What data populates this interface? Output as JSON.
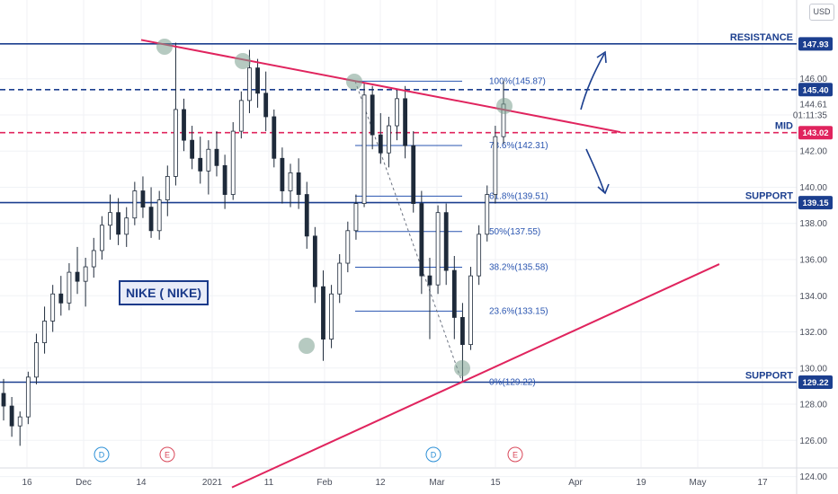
{
  "currency_label": "USD",
  "title_box": "NIKE ( NIKE)",
  "chart_data": {
    "type": "candlestick",
    "x_ticks": [
      "16",
      "Dec",
      "14",
      "2021",
      "11",
      "Feb",
      "12",
      "Mar",
      "15",
      "Apr",
      "19",
      "May",
      "17"
    ],
    "y_ticks": [
      "124.00",
      "126.00",
      "128.00",
      "130.00",
      "132.00",
      "134.00",
      "136.00",
      "138.00",
      "140.00",
      "142.00",
      "146.00",
      "144.61",
      "01:11:35"
    ],
    "price_tags": [
      {
        "value": "147.93",
        "color": "#1c3f8f"
      },
      {
        "value": "145.40",
        "color": "#1c3f8f"
      },
      {
        "value": "143.02",
        "color": "#e0245e"
      },
      {
        "value": "139.15",
        "color": "#1c3f8f"
      },
      {
        "value": "129.22",
        "color": "#1c3f8f"
      }
    ],
    "levels": [
      {
        "label": "RESISTANCE",
        "price": 147.93,
        "style": "solid",
        "color": "#1c3f8f"
      },
      {
        "label": "",
        "price": 145.4,
        "style": "dashed",
        "color": "#1c3f8f"
      },
      {
        "label": "MID",
        "price": 143.02,
        "style": "dashed",
        "color": "#e0245e"
      },
      {
        "label": "SUPPORT",
        "price": 139.15,
        "style": "solid",
        "color": "#1c3f8f"
      },
      {
        "label": "SUPPORT",
        "price": 129.22,
        "style": "solid",
        "color": "#1c3f8f"
      }
    ],
    "fib_levels": [
      {
        "label": "100%(145.87)",
        "price": 145.87
      },
      {
        "label": "78.6%(142.31)",
        "price": 142.31
      },
      {
        "label": "61.8%(139.51)",
        "price": 139.51
      },
      {
        "label": "50%(137.55)",
        "price": 137.55
      },
      {
        "label": "38.2%(135.58)",
        "price": 135.58
      },
      {
        "label": "23.6%(133.15)",
        "price": 133.15
      },
      {
        "label": "0%(129.22)",
        "price": 129.22
      }
    ],
    "trendlines": [
      {
        "name": "descending resistance",
        "color": "#e0245e",
        "from": {
          "bar": 0.35,
          "price": 148.2
        },
        "to": {
          "bar": 0.74,
          "price": 143.1
        }
      },
      {
        "name": "ascending support",
        "color": "#e0245e",
        "from": {
          "bar": 0.28,
          "price": 123.5
        },
        "to": {
          "bar": 0.86,
          "price": 135.7
        }
      }
    ],
    "event_markers": [
      {
        "label": "D",
        "color": "#2b8fd6"
      },
      {
        "label": "E",
        "color": "#d9485a"
      },
      {
        "label": "D",
        "color": "#2b8fd6"
      },
      {
        "label": "E",
        "color": "#d9485a"
      }
    ],
    "candles": [
      [
        128.6,
        129.4,
        127.1,
        127.9
      ],
      [
        127.9,
        128.4,
        126.2,
        126.8
      ],
      [
        126.8,
        127.6,
        125.7,
        127.3
      ],
      [
        127.3,
        129.8,
        126.9,
        129.5
      ],
      [
        129.5,
        131.9,
        129.1,
        131.4
      ],
      [
        131.4,
        133.4,
        130.8,
        132.6
      ],
      [
        132.6,
        134.6,
        132.0,
        134.1
      ],
      [
        134.1,
        135.1,
        132.9,
        133.6
      ],
      [
        133.6,
        135.8,
        133.2,
        135.3
      ],
      [
        135.3,
        136.7,
        134.1,
        134.8
      ],
      [
        134.8,
        136.1,
        133.4,
        135.6
      ],
      [
        135.6,
        137.2,
        135.0,
        136.5
      ],
      [
        136.5,
        138.4,
        136.0,
        137.9
      ],
      [
        137.9,
        139.6,
        137.1,
        138.6
      ],
      [
        138.6,
        139.4,
        136.8,
        137.4
      ],
      [
        137.4,
        138.9,
        136.7,
        138.3
      ],
      [
        138.3,
        140.3,
        137.9,
        139.8
      ],
      [
        139.8,
        140.6,
        138.3,
        138.9
      ],
      [
        138.9,
        140.0,
        137.2,
        137.6
      ],
      [
        137.6,
        139.8,
        137.1,
        139.3
      ],
      [
        139.3,
        141.2,
        138.4,
        140.6
      ],
      [
        140.6,
        148.0,
        140.1,
        144.3
      ],
      [
        144.3,
        144.9,
        142.0,
        142.6
      ],
      [
        142.6,
        143.4,
        141.0,
        141.6
      ],
      [
        141.6,
        142.8,
        140.2,
        140.9
      ],
      [
        140.9,
        142.6,
        139.6,
        142.1
      ],
      [
        142.1,
        143.1,
        140.6,
        141.2
      ],
      [
        141.2,
        141.8,
        138.8,
        139.6
      ],
      [
        139.6,
        143.6,
        139.3,
        143.1
      ],
      [
        143.1,
        145.3,
        142.7,
        144.8
      ],
      [
        144.8,
        147.6,
        144.1,
        146.6
      ],
      [
        146.6,
        147.1,
        144.4,
        145.2
      ],
      [
        145.2,
        146.4,
        143.1,
        143.9
      ],
      [
        143.9,
        144.3,
        141.1,
        141.6
      ],
      [
        141.6,
        142.2,
        139.1,
        139.8
      ],
      [
        139.8,
        141.3,
        138.9,
        140.8
      ],
      [
        140.8,
        141.6,
        138.8,
        139.6
      ],
      [
        139.6,
        140.3,
        136.6,
        137.3
      ],
      [
        137.3,
        137.8,
        133.6,
        134.5
      ],
      [
        134.5,
        135.4,
        130.4,
        131.6
      ],
      [
        131.6,
        134.6,
        131.1,
        134.1
      ],
      [
        134.1,
        136.3,
        133.6,
        135.8
      ],
      [
        135.8,
        138.1,
        135.3,
        137.6
      ],
      [
        137.6,
        139.6,
        137.1,
        139.1
      ],
      [
        139.1,
        145.8,
        138.9,
        145.1
      ],
      [
        145.1,
        145.6,
        142.1,
        142.9
      ],
      [
        142.9,
        144.1,
        141.3,
        141.9
      ],
      [
        141.9,
        143.9,
        141.1,
        143.4
      ],
      [
        143.4,
        145.4,
        142.6,
        144.9
      ],
      [
        144.9,
        145.6,
        141.6,
        142.3
      ],
      [
        142.3,
        143.1,
        138.6,
        139.1
      ],
      [
        139.1,
        139.8,
        134.1,
        135.1
      ],
      [
        135.1,
        136.1,
        131.6,
        134.6
      ],
      [
        134.6,
        139.0,
        134.1,
        138.6
      ],
      [
        138.6,
        139.1,
        134.6,
        135.4
      ],
      [
        135.4,
        136.2,
        131.6,
        132.8
      ],
      [
        132.8,
        133.6,
        129.2,
        131.3
      ],
      [
        131.3,
        135.6,
        131.0,
        135.1
      ],
      [
        135.1,
        137.9,
        134.6,
        137.4
      ],
      [
        137.4,
        140.1,
        137.0,
        139.6
      ],
      [
        139.6,
        143.4,
        139.1,
        142.8
      ],
      [
        142.8,
        145.9,
        142.4,
        144.6
      ]
    ]
  }
}
